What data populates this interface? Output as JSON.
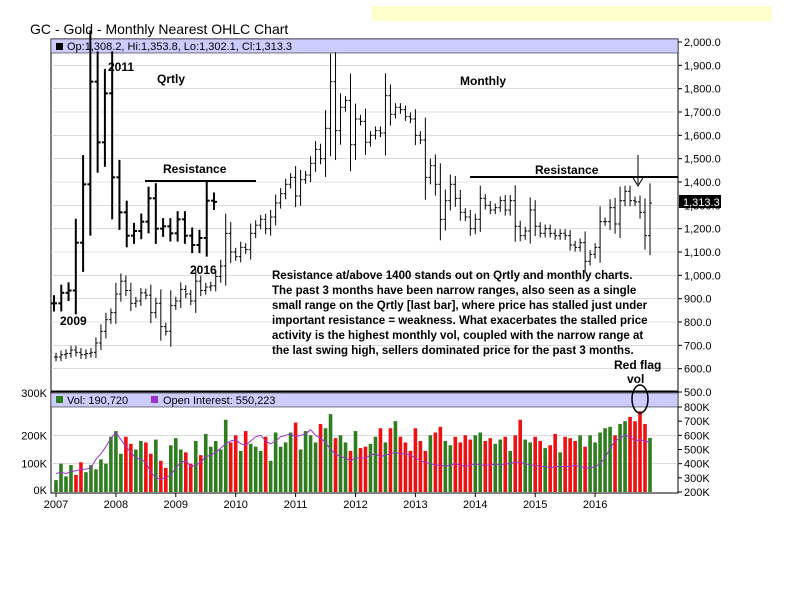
{
  "title": "GC - Gold - Monthly Nearest OHLC Chart",
  "colors": {
    "header_highlight": "#ffffcc",
    "legend_bg": "#ccccff",
    "up_vol": "#2e7d1e",
    "down_vol": "#ee1111",
    "oi_line": "#9933cc",
    "grid": "#c8c8c8"
  },
  "chart_data": [
    {
      "type": "ohlc",
      "legend": "Op:1,308.2, Hi:1,353.8, Lo:1,302.1, Cl:1,313.3",
      "last_price_label": "1,313.3",
      "y_ticks": [
        "2,000.0",
        "1,900.0",
        "1,800.0",
        "1,700.0",
        "1,600.0",
        "1,500.0",
        "1,400.0",
        "1,300.0",
        "1,200.0",
        "1,100.0",
        "1,000.0",
        "900.0",
        "800.0",
        "700.0",
        "600.0",
        "500.0"
      ],
      "ylim": [
        500,
        2000
      ],
      "monthly": {
        "start": "2007-01",
        "close": [
          650,
          660,
          665,
          680,
          670,
          660,
          665,
          670,
          710,
          760,
          810,
          840,
          920,
          975,
          935,
          880,
          890,
          925,
          915,
          840,
          880,
          780,
          760,
          870,
          890,
          940,
          920,
          890,
          975,
          935,
          950,
          955,
          995,
          1040,
          1180,
          1100,
          1080,
          1120,
          1110,
          1180,
          1215,
          1240,
          1200,
          1250,
          1310,
          1350,
          1390,
          1420,
          1340,
          1410,
          1430,
          1480,
          1540,
          1500,
          1630,
          1830,
          1620,
          1720,
          1750,
          1560,
          1670,
          1660,
          1570,
          1600,
          1620,
          1610,
          1770,
          1690,
          1720,
          1710,
          1680,
          1670,
          1600,
          1580,
          1420,
          1470,
          1390,
          1240,
          1320,
          1390,
          1330,
          1270,
          1250,
          1200,
          1240,
          1330,
          1300,
          1280,
          1290,
          1320,
          1280,
          1320,
          1210,
          1170,
          1190,
          1280,
          1210,
          1180,
          1200,
          1180,
          1170,
          1180,
          1170,
          1130,
          1120,
          1140,
          1060,
          1090,
          1120,
          1230,
          1230,
          1290,
          1220,
          1320,
          1360,
          1320,
          1315,
          1270,
          1170,
          1310
        ]
      },
      "quarterly": {
        "close": [
          880,
          925,
          935,
          1140,
          1390,
          1830,
          1570,
          1780,
          1420,
          1270,
          1170,
          1190,
          1230,
          1330,
          1200,
          1210,
          1180,
          1240,
          1170,
          1130,
          1160,
          1320,
          1315
        ]
      },
      "annotations": [
        "2011",
        "Qrtly",
        "Resistance",
        "2016",
        "2009",
        "Monthly",
        "Resistance"
      ],
      "note": [
        "Resistance at/above 1400 stands out on Qrtly and monthly charts.",
        "The past 3 months have been narrow ranges, also seen as a single",
        "small range on the Qrtly [last bar], where price has stalled just under",
        "important resistance = weakness.  What exacerbates the stalled price",
        "activity is the highest monthly vol, coupled with the narrow range at",
        "the last swing high, sellers dominated price for the past 3 months."
      ],
      "red_flag": [
        "Red flag",
        "vol"
      ]
    },
    {
      "type": "bar",
      "legend_vol": "Vol: 190,720",
      "legend_oi": "Open Interest: 550,223",
      "vol_ticks_left": [
        "300K",
        "200K",
        "100K",
        "0K"
      ],
      "vol_lim": [
        0,
        300000
      ],
      "oi_ticks_right": [
        "800K",
        "700K",
        "600K",
        "500K",
        "400K",
        "300K",
        "200K"
      ],
      "oi_lim": [
        200000,
        800000
      ],
      "x_ticks": [
        "2007",
        "2008",
        "2009",
        "2010",
        "2011",
        "2012",
        "2013",
        "2014",
        "2015",
        "2016"
      ],
      "volume": [
        42000,
        100000,
        55000,
        95000,
        60000,
        105000,
        70000,
        95000,
        80000,
        115000,
        100000,
        195000,
        215000,
        135000,
        195000,
        170000,
        150000,
        180000,
        175000,
        135000,
        185000,
        110000,
        85000,
        165000,
        190000,
        150000,
        140000,
        100000,
        180000,
        130000,
        205000,
        160000,
        180000,
        150000,
        255000,
        175000,
        200000,
        145000,
        215000,
        170000,
        160000,
        145000,
        195000,
        110000,
        210000,
        160000,
        175000,
        210000,
        245000,
        150000,
        215000,
        200000,
        175000,
        240000,
        225000,
        275000,
        190000,
        200000,
        175000,
        145000,
        215000,
        155000,
        160000,
        170000,
        195000,
        225000,
        175000,
        225000,
        250000,
        195000,
        175000,
        145000,
        225000,
        180000,
        145000,
        200000,
        210000,
        230000,
        180000,
        165000,
        195000,
        175000,
        200000,
        185000,
        200000,
        210000,
        180000,
        190000,
        170000,
        185000,
        195000,
        145000,
        200000,
        255000,
        185000,
        175000,
        195000,
        180000,
        155000,
        165000,
        205000,
        140000,
        195000,
        190000,
        180000,
        200000,
        160000,
        200000,
        175000,
        210000,
        225000,
        230000,
        200000,
        240000,
        250000,
        265000,
        250000,
        285000,
        240000,
        190720
      ],
      "open_interest": [
        330000,
        340000,
        330000,
        345000,
        350000,
        360000,
        360000,
        370000,
        430000,
        470000,
        520000,
        580000,
        620000,
        570000,
        520000,
        480000,
        440000,
        430000,
        410000,
        340000,
        300000,
        290000,
        300000,
        320000,
        370000,
        410000,
        420000,
        380000,
        390000,
        410000,
        450000,
        460000,
        480000,
        510000,
        540000,
        560000,
        570000,
        540000,
        530000,
        560000,
        590000,
        600000,
        560000,
        540000,
        560000,
        590000,
        600000,
        610000,
        590000,
        600000,
        610000,
        640000,
        600000,
        580000,
        550000,
        500000,
        470000,
        450000,
        440000,
        420000,
        440000,
        440000,
        440000,
        460000,
        470000,
        450000,
        460000,
        470000,
        480000,
        470000,
        470000,
        460000,
        440000,
        420000,
        410000,
        400000,
        390000,
        390000,
        380000,
        390000,
        400000,
        390000,
        380000,
        390000,
        400000,
        390000,
        390000,
        390000,
        400000,
        390000,
        400000,
        400000,
        410000,
        410000,
        400000,
        390000,
        390000,
        380000,
        380000,
        370000,
        380000,
        380000,
        380000,
        380000,
        390000,
        380000,
        370000,
        370000,
        380000,
        400000,
        440000,
        510000,
        560000,
        580000,
        600000,
        590000,
        560000,
        570000,
        560000,
        550223
      ]
    }
  ]
}
